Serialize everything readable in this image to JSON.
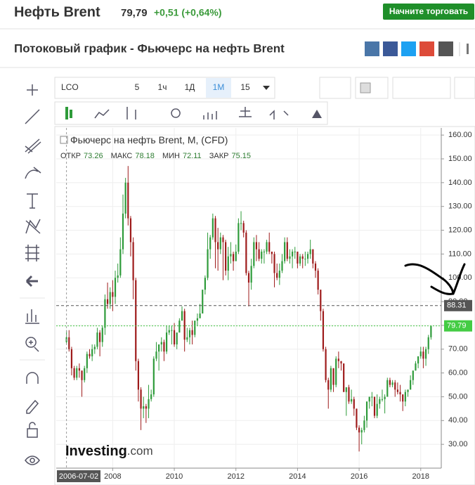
{
  "header": {
    "title": "Нефть Brent",
    "price": "79,79",
    "change": "+0,51 (+0,64%)",
    "button": "Начните торговать"
  },
  "subtitle": "Потоковый график - Фьючерс на нефть Brent",
  "toolbar": {
    "symbol": "LCO",
    "intervals": [
      "5",
      "1ч",
      "1Д",
      "1М",
      "15"
    ]
  },
  "watermark": [
    "Investing",
    ".com"
  ],
  "chart_data": {
    "type": "candlestick",
    "title": "Фьючерс на нефть Brent, M, (CFD)",
    "ohlc_legend": [
      {
        "label": "ОТКР",
        "value": 73.26
      },
      {
        "label": "МАКС",
        "value": 78.18
      },
      {
        "label": "МИН",
        "value": 72.11
      },
      {
        "label": "ЗАКР",
        "value": 75.15
      }
    ],
    "up_color": "#2e9b3a",
    "down_color": "#9e1b1b",
    "x": [
      "2006-07",
      "2006-08",
      "2006-09",
      "2006-10",
      "2006-11",
      "2006-12",
      "2007-01",
      "2007-02",
      "2007-03",
      "2007-04",
      "2007-05",
      "2007-06",
      "2007-07",
      "2007-08",
      "2007-09",
      "2007-10",
      "2007-11",
      "2007-12",
      "2008-01",
      "2008-02",
      "2008-03",
      "2008-04",
      "2008-05",
      "2008-06",
      "2008-07",
      "2008-08",
      "2008-09",
      "2008-10",
      "2008-11",
      "2008-12",
      "2009-01",
      "2009-02",
      "2009-03",
      "2009-04",
      "2009-05",
      "2009-06",
      "2009-07",
      "2009-08",
      "2009-09",
      "2009-10",
      "2009-11",
      "2009-12",
      "2010-01",
      "2010-02",
      "2010-03",
      "2010-04",
      "2010-05",
      "2010-06",
      "2010-07",
      "2010-08",
      "2010-09",
      "2010-10",
      "2010-11",
      "2010-12",
      "2011-01",
      "2011-02",
      "2011-03",
      "2011-04",
      "2011-05",
      "2011-06",
      "2011-07",
      "2011-08",
      "2011-09",
      "2011-10",
      "2011-11",
      "2011-12",
      "2012-01",
      "2012-02",
      "2012-03",
      "2012-04",
      "2012-05",
      "2012-06",
      "2012-07",
      "2012-08",
      "2012-09",
      "2012-10",
      "2012-11",
      "2012-12",
      "2013-01",
      "2013-02",
      "2013-03",
      "2013-04",
      "2013-05",
      "2013-06",
      "2013-07",
      "2013-08",
      "2013-09",
      "2013-10",
      "2013-11",
      "2013-12",
      "2014-01",
      "2014-02",
      "2014-03",
      "2014-04",
      "2014-05",
      "2014-06",
      "2014-07",
      "2014-08",
      "2014-09",
      "2014-10",
      "2014-11",
      "2014-12",
      "2015-01",
      "2015-02",
      "2015-03",
      "2015-04",
      "2015-05",
      "2015-06",
      "2015-07",
      "2015-08",
      "2015-09",
      "2015-10",
      "2015-11",
      "2015-12",
      "2016-01",
      "2016-02",
      "2016-03",
      "2016-04",
      "2016-05",
      "2016-06",
      "2016-07",
      "2016-08",
      "2016-09",
      "2016-10",
      "2016-11",
      "2016-12",
      "2017-01",
      "2017-02",
      "2017-03",
      "2017-04",
      "2017-05",
      "2017-06",
      "2017-07",
      "2017-08",
      "2017-09",
      "2017-10",
      "2017-11",
      "2017-12",
      "2018-01",
      "2018-02",
      "2018-03",
      "2018-04",
      "2018-05"
    ],
    "open": [
      73,
      75,
      70,
      62,
      58,
      62,
      61,
      57,
      62,
      68,
      67,
      70,
      71,
      77,
      73,
      79,
      91,
      89,
      94,
      92,
      100,
      101,
      112,
      127,
      140,
      125,
      115,
      99,
      65,
      53,
      45,
      46,
      45,
      49,
      51,
      66,
      69,
      72,
      73,
      69,
      77,
      78,
      78,
      72,
      77,
      82,
      86,
      74,
      75,
      78,
      76,
      82,
      83,
      85,
      95,
      100,
      112,
      117,
      125,
      115,
      112,
      117,
      115,
      103,
      109,
      110,
      107,
      111,
      123,
      123,
      119,
      102,
      98,
      105,
      115,
      112,
      108,
      111,
      111,
      115,
      111,
      110,
      102,
      100,
      103,
      107,
      115,
      108,
      109,
      111,
      111,
      106,
      109,
      108,
      108,
      110,
      112,
      106,
      103,
      95,
      86,
      70,
      57,
      53,
      62,
      55,
      66,
      65,
      64,
      52,
      54,
      48,
      49,
      45,
      37,
      35,
      36,
      40,
      48,
      50,
      50,
      42,
      47,
      49,
      49,
      50,
      57,
      55,
      56,
      53,
      52,
      51,
      48,
      52,
      53,
      57,
      61,
      64,
      67,
      69,
      66,
      70,
      75
    ],
    "high": [
      78,
      78,
      71,
      63,
      63,
      64,
      61,
      63,
      69,
      70,
      72,
      72,
      79,
      78,
      80,
      93,
      98,
      96,
      99,
      103,
      106,
      117,
      135,
      142,
      147,
      126,
      117,
      100,
      66,
      54,
      50,
      47,
      55,
      53,
      67,
      73,
      72,
      75,
      74,
      80,
      80,
      80,
      81,
      77,
      83,
      88,
      87,
      79,
      79,
      82,
      82,
      85,
      89,
      95,
      101,
      119,
      118,
      127,
      126,
      121,
      119,
      118,
      116,
      113,
      115,
      111,
      114,
      125,
      128,
      124,
      120,
      103,
      108,
      117,
      118,
      115,
      112,
      112,
      116,
      119,
      111,
      111,
      106,
      106,
      110,
      117,
      117,
      112,
      112,
      113,
      111,
      110,
      110,
      111,
      111,
      116,
      112,
      107,
      104,
      95,
      87,
      71,
      58,
      63,
      62,
      67,
      69,
      65,
      64,
      54,
      55,
      53,
      50,
      45,
      38,
      37,
      42,
      48,
      50,
      52,
      50,
      51,
      50,
      53,
      51,
      58,
      58,
      57,
      57,
      56,
      55,
      51,
      53,
      53,
      59,
      61,
      65,
      67,
      71,
      71,
      71,
      76,
      80
    ],
    "low": [
      72,
      69,
      59,
      57,
      57,
      58,
      50,
      56,
      60,
      66,
      65,
      68,
      70,
      67,
      71,
      76,
      87,
      87,
      86,
      89,
      98,
      100,
      110,
      125,
      122,
      109,
      91,
      61,
      48,
      36,
      41,
      39,
      41,
      48,
      50,
      65,
      61,
      69,
      65,
      68,
      76,
      72,
      71,
      70,
      77,
      82,
      69,
      73,
      72,
      72,
      75,
      80,
      83,
      85,
      93,
      99,
      108,
      116,
      104,
      103,
      110,
      99,
      101,
      99,
      106,
      103,
      107,
      110,
      120,
      117,
      101,
      88,
      95,
      104,
      107,
      107,
      106,
      106,
      110,
      110,
      106,
      96,
      99,
      97,
      102,
      106,
      107,
      106,
      104,
      108,
      104,
      105,
      104,
      105,
      106,
      108,
      104,
      100,
      93,
      82,
      69,
      56,
      45,
      52,
      52,
      54,
      62,
      61,
      52,
      42,
      47,
      47,
      42,
      36,
      27,
      30,
      35,
      37,
      45,
      46,
      41,
      41,
      45,
      48,
      43,
      50,
      54,
      54,
      50,
      51,
      48,
      44,
      46,
      50,
      53,
      55,
      61,
      62,
      66,
      62,
      63,
      68,
      74
    ],
    "close": [
      75,
      70,
      62,
      58,
      62,
      61,
      57,
      62,
      68,
      67,
      70,
      71,
      77,
      73,
      79,
      91,
      89,
      94,
      92,
      100,
      101,
      112,
      127,
      140,
      125,
      115,
      99,
      65,
      53,
      45,
      46,
      45,
      49,
      51,
      66,
      69,
      72,
      73,
      69,
      77,
      78,
      78,
      72,
      77,
      82,
      86,
      74,
      75,
      78,
      76,
      82,
      83,
      85,
      95,
      100,
      112,
      117,
      125,
      115,
      112,
      117,
      115,
      103,
      109,
      110,
      107,
      111,
      123,
      123,
      119,
      102,
      98,
      105,
      115,
      112,
      108,
      111,
      111,
      115,
      111,
      110,
      102,
      100,
      103,
      107,
      115,
      108,
      109,
      111,
      111,
      106,
      109,
      108,
      108,
      110,
      112,
      106,
      103,
      95,
      86,
      70,
      57,
      53,
      62,
      55,
      66,
      65,
      64,
      52,
      54,
      48,
      49,
      45,
      37,
      35,
      36,
      40,
      48,
      50,
      50,
      42,
      47,
      49,
      49,
      50,
      57,
      55,
      56,
      53,
      52,
      51,
      48,
      52,
      53,
      57,
      61,
      64,
      67,
      69,
      66,
      70,
      75,
      79.79
    ],
    "xlim": [
      "2006-03",
      "2018-09"
    ],
    "xticks": [
      {
        "value": "2008-01",
        "label": "2008"
      },
      {
        "value": "2010-01",
        "label": "2010"
      },
      {
        "value": "2012-01",
        "label": "2012"
      },
      {
        "value": "2014-01",
        "label": "2014"
      },
      {
        "value": "2016-01",
        "label": "2016"
      },
      {
        "value": "2018-01",
        "label": "2018"
      }
    ],
    "ylim": [
      20,
      163
    ],
    "yticks": [
      {
        "value": 30,
        "label": "30.00"
      },
      {
        "value": 40,
        "label": "40.00"
      },
      {
        "value": 50,
        "label": "50.00"
      },
      {
        "value": 60,
        "label": "60.00"
      },
      {
        "value": 70,
        "label": "70.00"
      },
      {
        "value": 80,
        "label": "80.00"
      },
      {
        "value": 90,
        "label": "90.00"
      },
      {
        "value": 100,
        "label": "100.00"
      },
      {
        "value": 110,
        "label": "110.00"
      },
      {
        "value": 120,
        "label": "120.00"
      },
      {
        "value": 130,
        "label": "130.00"
      },
      {
        "value": 140,
        "label": "140.00"
      },
      {
        "value": 150,
        "label": "150.00"
      },
      {
        "value": 160,
        "label": "160.00"
      }
    ],
    "grid": true,
    "price_lines": [
      {
        "value": 88.31,
        "color": "#555555"
      },
      {
        "value": 79.79,
        "color": "#44cc44"
      }
    ],
    "crosshair": {
      "x": "2006-07",
      "label": "2006-07-02"
    }
  }
}
